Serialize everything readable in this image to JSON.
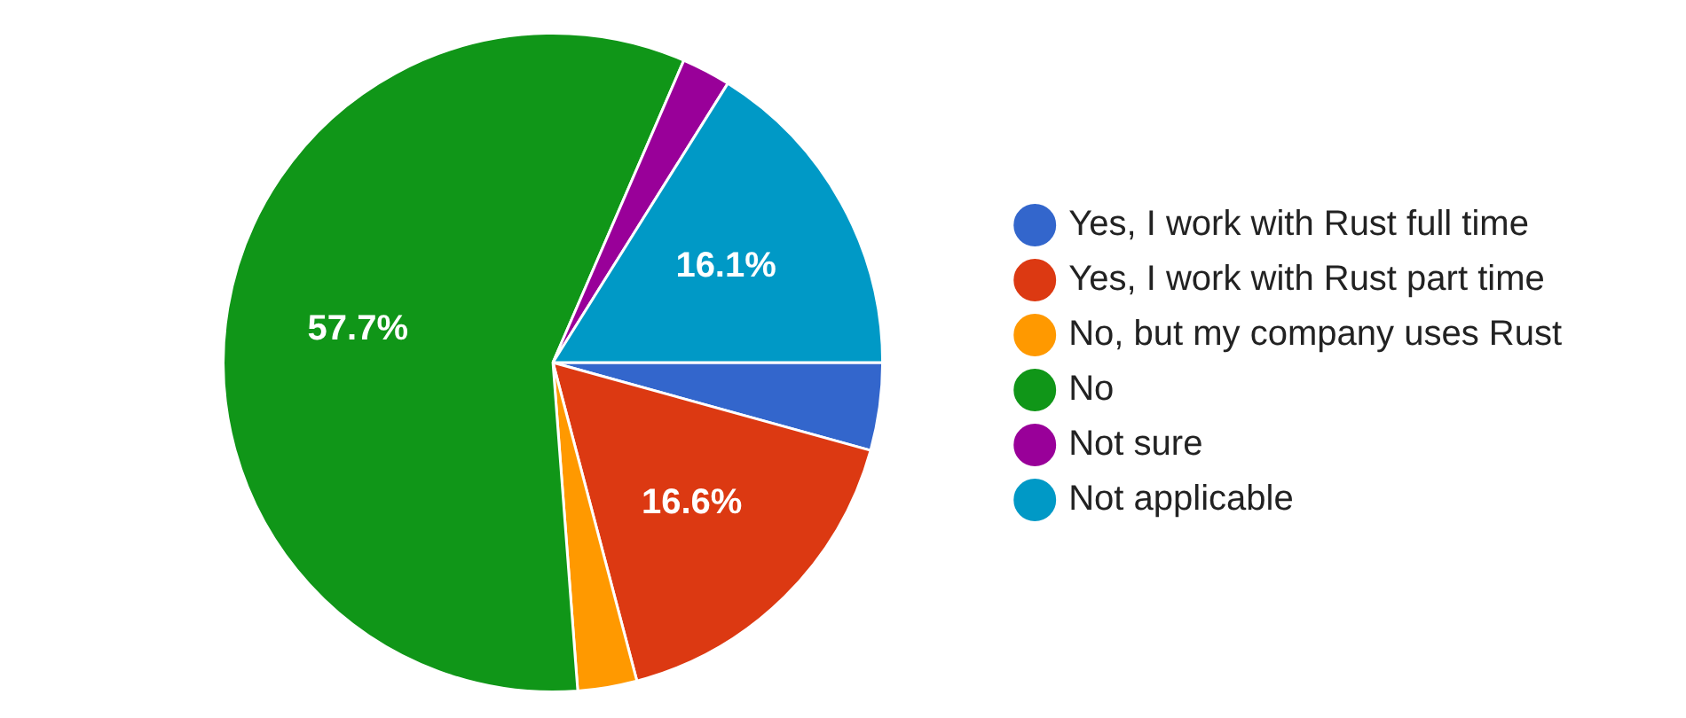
{
  "chart_data": {
    "type": "pie",
    "categories": [
      "Yes, I work with Rust full time",
      "Yes, I work with Rust part time",
      "No, but my company uses Rust",
      "No",
      "Not sure",
      "Not applicable"
    ],
    "values": [
      4.3,
      16.6,
      2.9,
      57.7,
      2.4,
      16.1
    ],
    "colors": [
      "#3366cc",
      "#dc3912",
      "#ff9900",
      "#109618",
      "#990099",
      "#0099c6"
    ],
    "value_labels": [
      null,
      "16.6%",
      null,
      "57.7%",
      null,
      "16.1%"
    ],
    "legend": "right"
  }
}
